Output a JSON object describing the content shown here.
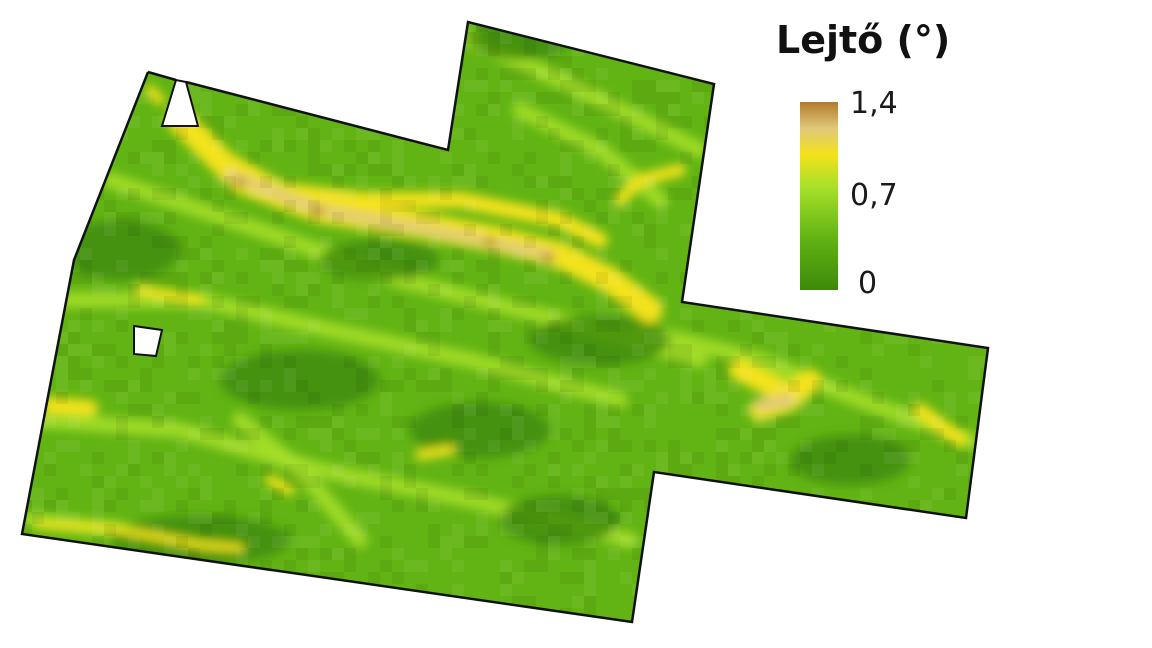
{
  "legend": {
    "title": "Lejtő (°)",
    "max_label": "1,4",
    "mid_label": "0,7",
    "min_label": "0",
    "max_value": 1.4,
    "mid_value": 0.7,
    "min_value": 0
  },
  "colors": {
    "ramp": [
      "#3d8a0a",
      "#62b414",
      "#a9e02a",
      "#f3e21a",
      "#e0c87a",
      "#b27a2a"
    ],
    "background": "#ffffff",
    "outline": "#111111",
    "hole_fill": "#ffffff"
  },
  "layer": {
    "name": "slope-raster",
    "unit": "degrees"
  }
}
